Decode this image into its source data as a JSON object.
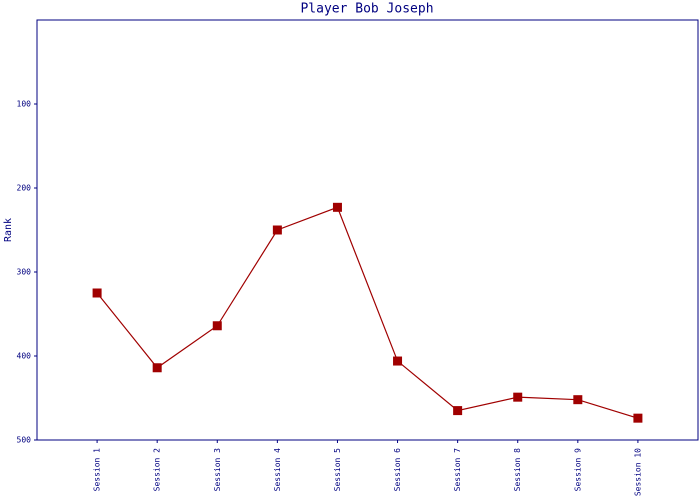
{
  "chart_data": {
    "type": "line",
    "title": "Player Bob Joseph",
    "y_label": "Rank",
    "categories": [
      "Session 1",
      "Session 2",
      "Session 3",
      "Session 4",
      "Session 5",
      "Session 6",
      "Session 7",
      "Session 8",
      "Session 9",
      "Session 10"
    ],
    "series": [
      {
        "name": "Rank",
        "color": "#a00000",
        "values": [
          325,
          414,
          364,
          250,
          223,
          406,
          465,
          449,
          452,
          474
        ]
      }
    ],
    "ylim": [
      0,
      500
    ],
    "y_inverted": true,
    "yticks": [
      100,
      200,
      300,
      400,
      500
    ],
    "grid": false
  }
}
